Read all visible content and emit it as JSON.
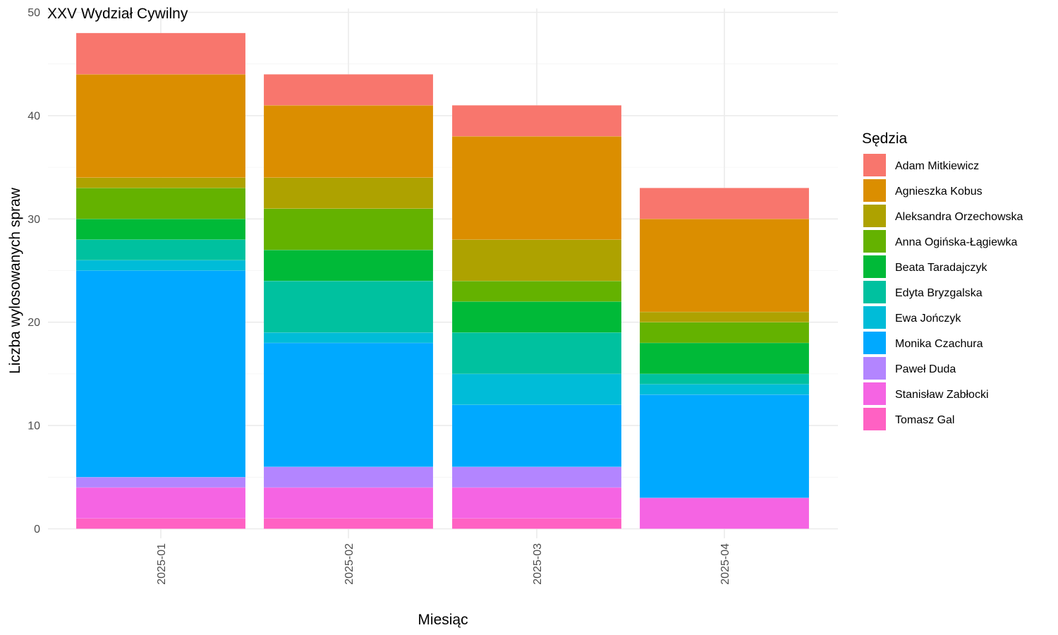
{
  "chart_data": {
    "type": "bar",
    "stacked": true,
    "title": "XXV Wydział Cywilny",
    "xlabel": "Miesiąc",
    "ylabel": "Liczba wylosowanych spraw",
    "ylim": [
      0,
      50
    ],
    "yticks": [
      0,
      10,
      20,
      30,
      40,
      50
    ],
    "grid": true,
    "legend": {
      "title": "Sędzia",
      "position": "right"
    },
    "categories": [
      "2025-01",
      "2025-02",
      "2025-03",
      "2025-04"
    ],
    "series": [
      {
        "name": "Tomasz Gal",
        "color": "#FF61C3",
        "values": [
          1,
          1,
          1,
          0
        ]
      },
      {
        "name": "Stanisław Zabłocki",
        "color": "#F564E3",
        "values": [
          3,
          3,
          3,
          3
        ]
      },
      {
        "name": "Paweł Duda",
        "color": "#B385FF",
        "values": [
          1,
          2,
          2,
          0
        ]
      },
      {
        "name": "Monika Czachura",
        "color": "#00A9FF",
        "values": [
          20,
          12,
          6,
          10
        ]
      },
      {
        "name": "Ewa Jończyk",
        "color": "#00BCD8",
        "values": [
          1,
          1,
          3,
          1
        ]
      },
      {
        "name": "Edyta Bryzgalska",
        "color": "#00C19F",
        "values": [
          2,
          5,
          4,
          1
        ]
      },
      {
        "name": "Beata Taradajczyk",
        "color": "#00BA38",
        "values": [
          2,
          3,
          3,
          3
        ]
      },
      {
        "name": "Anna Ogińska-Łągiewka",
        "color": "#64B200",
        "values": [
          3,
          4,
          2,
          2
        ]
      },
      {
        "name": "Aleksandra Orzechowska",
        "color": "#AEA200",
        "values": [
          1,
          3,
          4,
          1
        ]
      },
      {
        "name": "Agnieszka Kobus",
        "color": "#DB8E00",
        "values": [
          10,
          7,
          10,
          9
        ]
      },
      {
        "name": "Adam Mitkiewicz",
        "color": "#F8766D",
        "values": [
          4,
          3,
          3,
          3
        ]
      }
    ],
    "legend_order": [
      "Adam Mitkiewicz",
      "Agnieszka Kobus",
      "Aleksandra Orzechowska",
      "Anna Ogińska-Łągiewka",
      "Beata Taradajczyk",
      "Edyta Bryzgalska",
      "Ewa Jończyk",
      "Monika Czachura",
      "Paweł Duda",
      "Stanisław Zabłocki",
      "Tomasz Gal"
    ]
  }
}
